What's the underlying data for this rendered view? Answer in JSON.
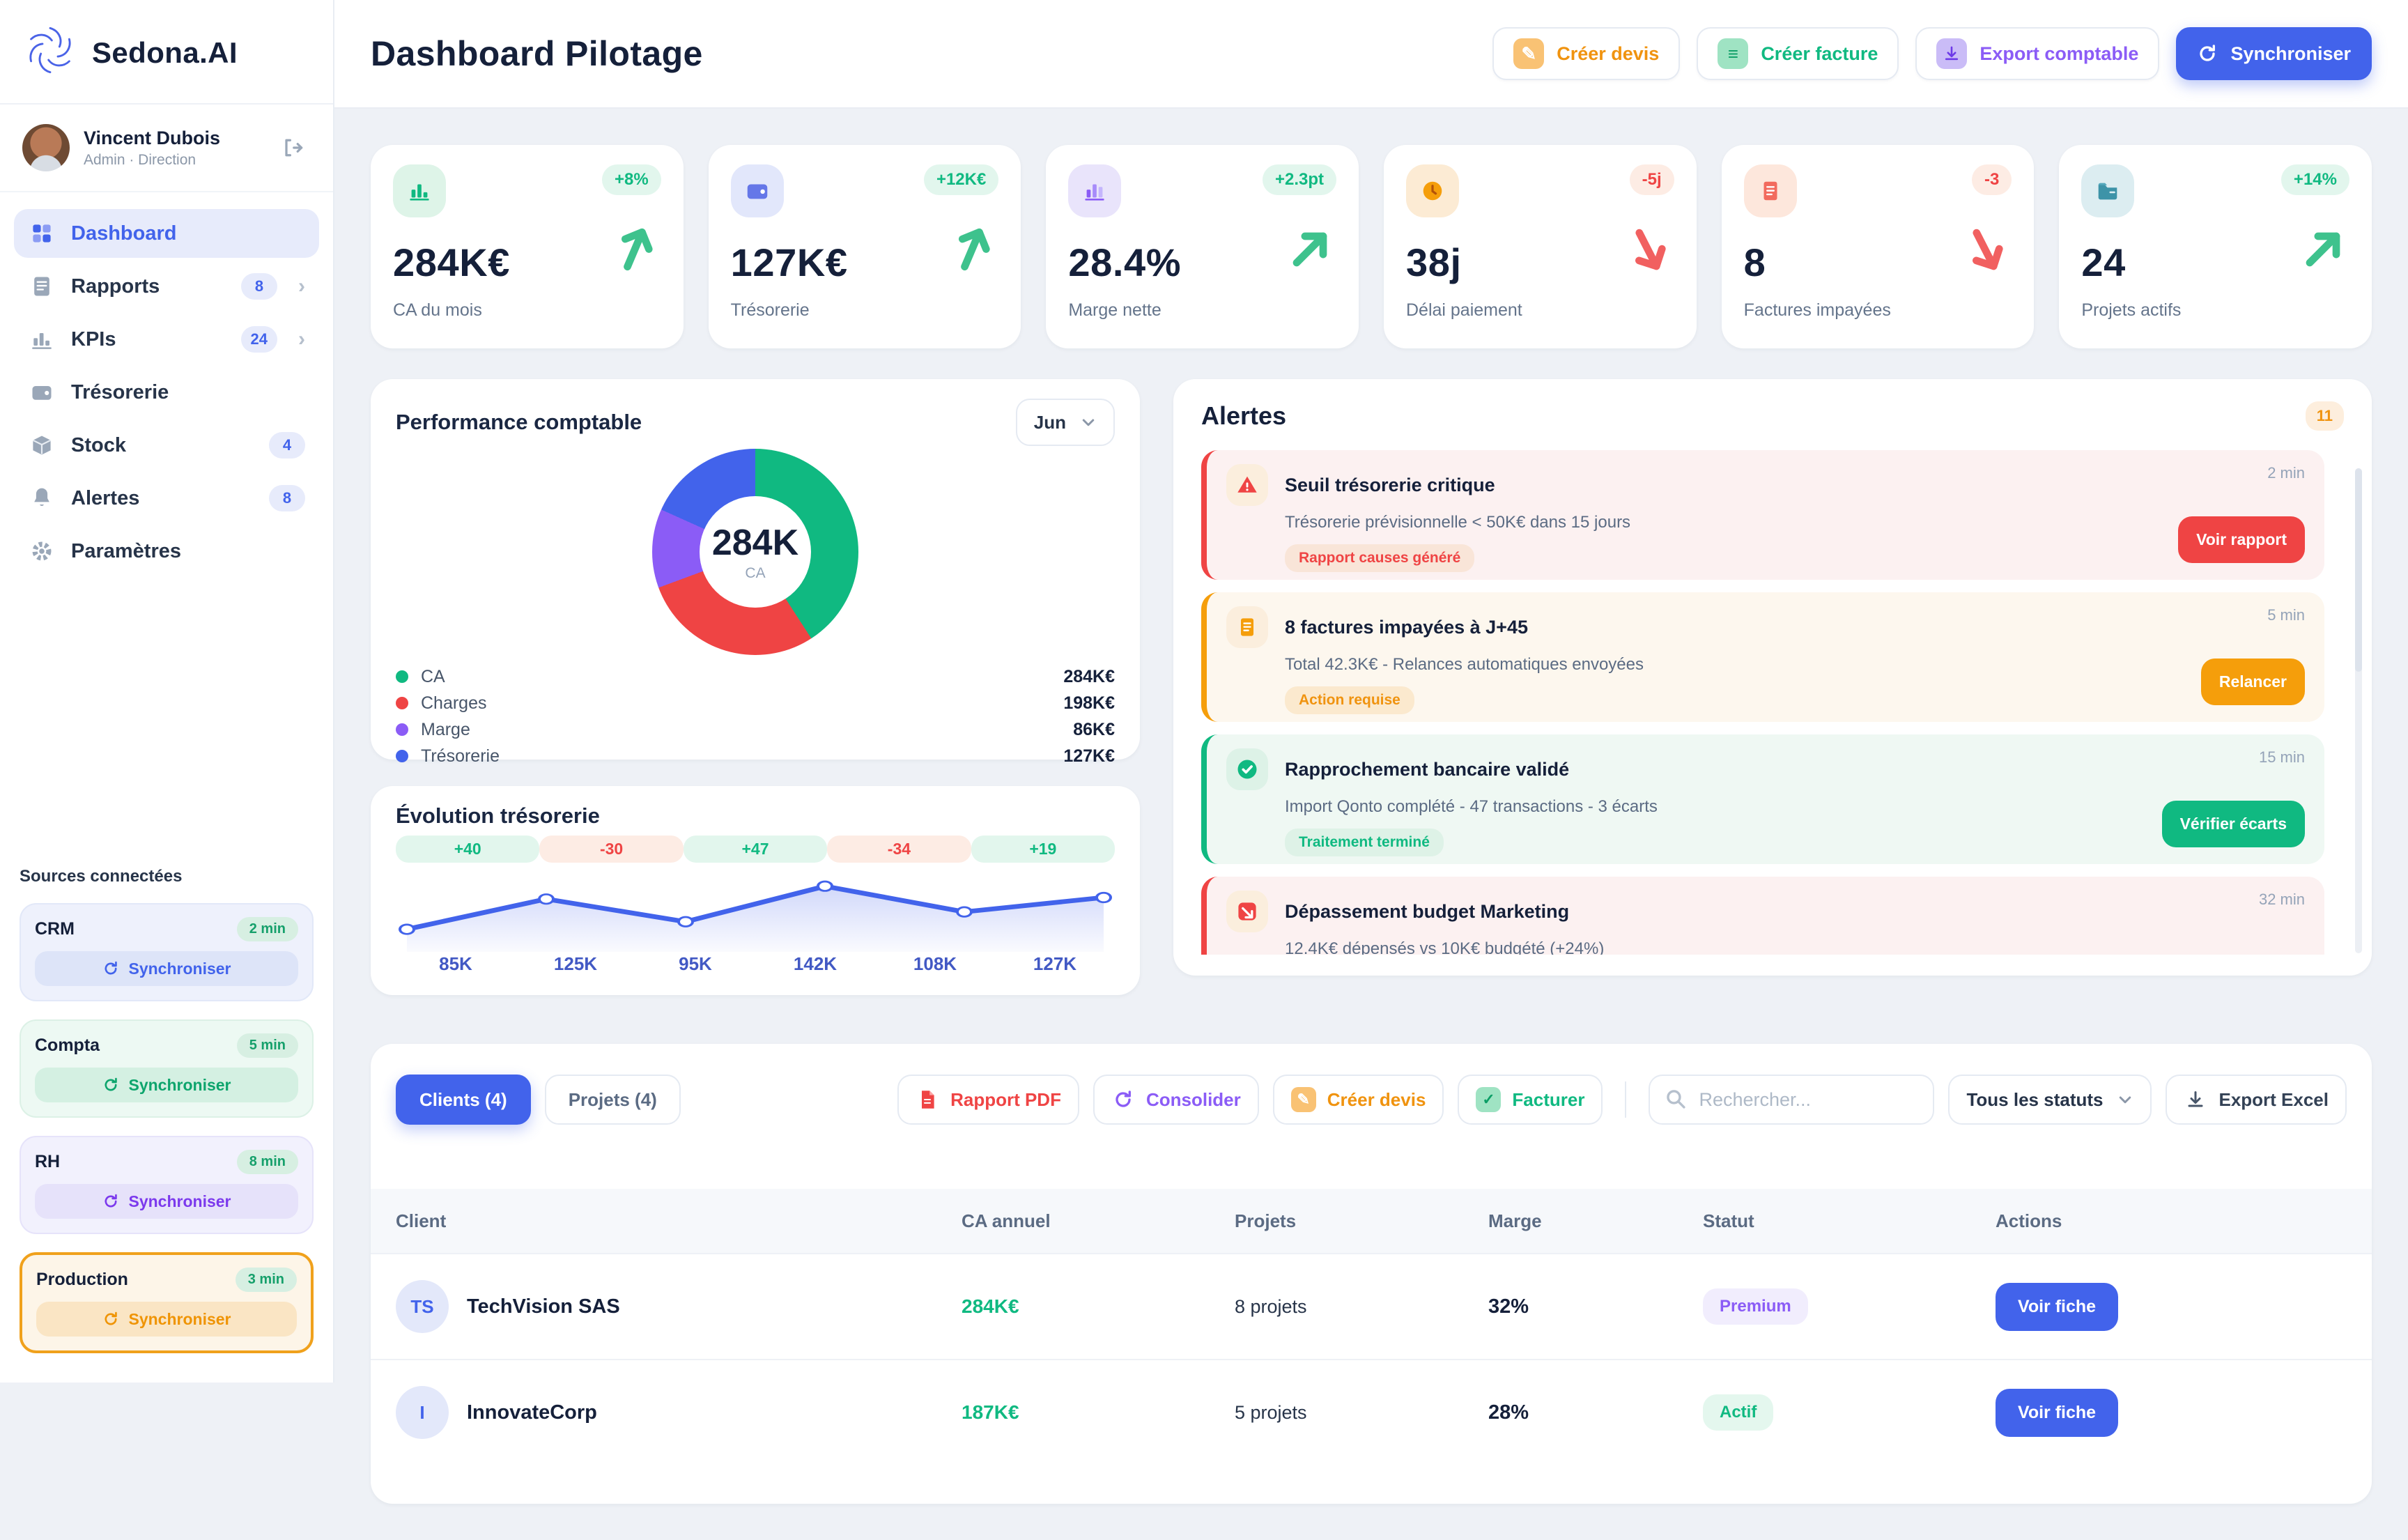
{
  "brand": {
    "name": "Sedona.AI"
  },
  "user": {
    "name": "Vincent Dubois",
    "role": "Admin · Direction"
  },
  "sidebar": {
    "items": [
      {
        "label": "Dashboard"
      },
      {
        "label": "Rapports",
        "badge": "8"
      },
      {
        "label": "KPIs",
        "badge": "24"
      },
      {
        "label": "Trésorerie"
      },
      {
        "label": "Stock",
        "badge": "4"
      },
      {
        "label": "Alertes",
        "badge": "8"
      },
      {
        "label": "Paramètres"
      }
    ]
  },
  "sources": {
    "title": "Sources connectées",
    "items": [
      {
        "name": "CRM",
        "last_sync": "2 min",
        "button": "Synchroniser"
      },
      {
        "name": "Compta",
        "last_sync": "5 min",
        "button": "Synchroniser"
      },
      {
        "name": "RH",
        "last_sync": "8 min",
        "button": "Synchroniser"
      },
      {
        "name": "Production",
        "last_sync": "3 min",
        "button": "Synchroniser"
      }
    ]
  },
  "header": {
    "title": "Dashboard Pilotage",
    "actions": [
      "Créer devis",
      "Créer facture",
      "Export comptable",
      "Synchroniser"
    ]
  },
  "kpis": [
    {
      "value": "284K€",
      "label": "CA du mois",
      "badge": "+8%",
      "trend": "up"
    },
    {
      "value": "127K€",
      "label": "Trésorerie",
      "badge": "+12K€",
      "trend": "up"
    },
    {
      "value": "28.4%",
      "label": "Marge nette",
      "badge": "+2.3pt",
      "trend": "up"
    },
    {
      "value": "38j",
      "label": "Délai paiement",
      "badge": "-5j",
      "trend": "down"
    },
    {
      "value": "8",
      "label": "Factures impayées",
      "badge": "-3",
      "trend": "down"
    },
    {
      "value": "24",
      "label": "Projets actifs",
      "badge": "+14%",
      "trend": "up"
    }
  ],
  "performance": {
    "title": "Performance comptable",
    "period": "Jun",
    "center_value": "284K",
    "center_label": "CA",
    "legend": [
      {
        "label": "CA",
        "value": "284K€"
      },
      {
        "label": "Charges",
        "value": "198K€"
      },
      {
        "label": "Marge",
        "value": "86K€"
      },
      {
        "label": "Trésorerie",
        "value": "127K€"
      }
    ]
  },
  "treasury": {
    "title": "Évolution trésorerie"
  },
  "alerts": {
    "title": "Alertes",
    "count": "11",
    "items": [
      {
        "title": "Seuil trésorerie critique",
        "time": "2 min",
        "desc": "Trésorerie prévisionnelle < 50K€ dans 15 jours",
        "tag": "Rapport causes généré",
        "action": "Voir rapport"
      },
      {
        "title": "8 factures impayées à J+45",
        "time": "5 min",
        "desc": "Total 42.3K€ - Relances automatiques envoyées",
        "tag": "Action requise",
        "action": "Relancer"
      },
      {
        "title": "Rapprochement bancaire validé",
        "time": "15 min",
        "desc": "Import Qonto complété - 47 transactions - 3 écarts",
        "tag": "Traitement terminé",
        "action": "Vérifier écarts"
      },
      {
        "title": "Dépassement budget Marketing",
        "time": "32 min",
        "desc": "12.4K€ dépensés vs 10K€ budgété (+24%)"
      }
    ]
  },
  "clients": {
    "tabs": [
      {
        "label": "Clients (4)"
      },
      {
        "label": "Projets (4)"
      }
    ],
    "actions": [
      "Rapport PDF",
      "Consolider",
      "Créer devis",
      "Facturer"
    ],
    "search_placeholder": "Rechercher...",
    "status_filter": "Tous les statuts",
    "export_label": "Export Excel",
    "columns": [
      "Client",
      "CA annuel",
      "Projets",
      "Marge",
      "Statut",
      "Actions"
    ],
    "rows": [
      {
        "initials": "TS",
        "name": "TechVision SAS",
        "ca": "284K€",
        "projects": "8 projets",
        "margin": "32%",
        "status": "Premium",
        "action": "Voir fiche"
      },
      {
        "initials": "I",
        "name": "InnovateCorp",
        "ca": "187K€",
        "projects": "5 projets",
        "margin": "28%",
        "status": "Actif",
        "action": "Voir fiche"
      }
    ]
  },
  "colors": {
    "accent": "#4263eb",
    "success": "#10b981",
    "danger": "#ef4444",
    "warning": "#f59e0b",
    "purple": "#8b5cf6"
  },
  "chart_data": [
    {
      "type": "pie",
      "subtype": "donut",
      "title": "Performance comptable",
      "period": "Jun",
      "labels": [
        "CA",
        "Charges",
        "Marge",
        "Trésorerie"
      ],
      "values": [
        284,
        198,
        86,
        127
      ],
      "unit": "K€",
      "colors": [
        "#10b981",
        "#ef4444",
        "#8b5cf6",
        "#4263eb"
      ],
      "center": {
        "value": "284K",
        "label": "CA"
      },
      "legend_position": "bottom"
    },
    {
      "type": "line",
      "title": "Évolution trésorerie",
      "x": [
        "85K",
        "125K",
        "95K",
        "142K",
        "108K",
        "127K"
      ],
      "values": [
        85,
        125,
        95,
        142,
        108,
        127
      ],
      "deltas": [
        "+40",
        "-30",
        "+47",
        "-34",
        "+19"
      ],
      "unit": "K",
      "color": "#4263eb",
      "area_fill": true,
      "grid": false
    }
  ]
}
